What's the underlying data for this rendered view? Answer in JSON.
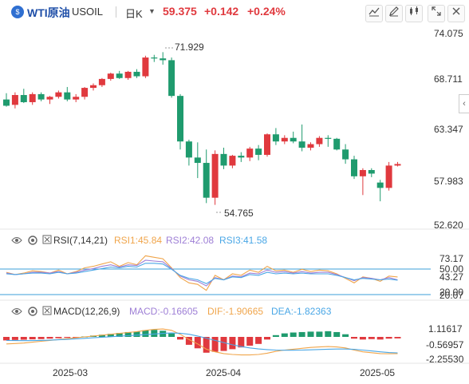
{
  "header": {
    "symbol_badge": "$",
    "name": "WTI原油",
    "code": "USOIL",
    "period": "日K",
    "period_caret": "▼",
    "price": "59.375",
    "change": "+0.142",
    "change_pct": "+0.24%",
    "icons": [
      "trend-icon",
      "pencil-icon",
      "candles-icon",
      "expand-icon",
      "close-icon"
    ]
  },
  "price_axis": [
    "74.075",
    "68.711",
    "63.347",
    "57.983",
    "52.620"
  ],
  "annotations": {
    "high": "71.929",
    "low": "54.765"
  },
  "rsi": {
    "title": "RSI(7,14,21)",
    "rsi1": "RSI1:45.84",
    "rsi2": "RSI2:42.08",
    "rsi3": "RSI3:41.58",
    "axis": [
      "73.17",
      "50.00",
      "43.27",
      "20.00",
      "20.07"
    ],
    "colors": {
      "rsi1": "#f0a54b",
      "rsi2": "#9e7fd6",
      "rsi3": "#4aa7e6"
    }
  },
  "macd": {
    "title": "MACD(12,26,9)",
    "macd": "MACD:-0.16605",
    "dif": "DIF:-1.90665",
    "dea": "DEA:-1.82363",
    "axis": [
      "1.11617",
      "-0.56957",
      "-2.25530"
    ],
    "colors": {
      "macd": "#9e7fd6",
      "dif": "#f0a54b",
      "dea": "#4aa7e6"
    }
  },
  "time_axis": [
    "2025-03",
    "2025-04",
    "2025-05"
  ],
  "colors": {
    "up": "#e0393e",
    "down": "#1f9b6e",
    "accent": "#1f4fa8"
  },
  "chart_data": {
    "type": "candlestick",
    "ylim": [
      52.62,
      74.075
    ],
    "ohlc": [
      [
        66.6,
        67.3,
        65.8,
        65.9
      ],
      [
        66.0,
        67.4,
        65.6,
        67.1
      ],
      [
        67.1,
        67.8,
        66.2,
        66.3
      ],
      [
        66.3,
        67.4,
        66.0,
        67.2
      ],
      [
        67.2,
        67.4,
        66.4,
        66.6
      ],
      [
        66.6,
        67.0,
        66.1,
        66.9
      ],
      [
        66.9,
        67.6,
        66.7,
        67.4
      ],
      [
        67.4,
        68.0,
        66.4,
        66.6
      ],
      [
        66.6,
        67.2,
        66.3,
        66.9
      ],
      [
        66.9,
        68.0,
        66.6,
        67.9
      ],
      [
        67.9,
        68.4,
        67.6,
        68.2
      ],
      [
        68.2,
        69.0,
        68.0,
        68.9
      ],
      [
        68.9,
        69.6,
        68.7,
        69.5
      ],
      [
        69.5,
        69.8,
        68.9,
        69.0
      ],
      [
        69.0,
        69.8,
        68.8,
        69.7
      ],
      [
        69.7,
        70.0,
        69.0,
        69.2
      ],
      [
        69.2,
        71.5,
        69.0,
        71.3
      ],
      [
        71.3,
        71.6,
        70.8,
        71.2
      ],
      [
        71.2,
        71.9,
        70.5,
        71.0
      ],
      [
        71.0,
        71.3,
        66.8,
        67.0
      ],
      [
        67.0,
        67.2,
        61.0,
        61.9
      ],
      [
        61.9,
        62.1,
        59.2,
        60.1
      ],
      [
        60.1,
        61.8,
        57.8,
        59.5
      ],
      [
        59.5,
        61.0,
        55.0,
        55.6
      ],
      [
        55.6,
        60.9,
        54.8,
        60.5
      ],
      [
        60.5,
        61.2,
        58.8,
        59.2
      ],
      [
        59.2,
        60.4,
        58.9,
        60.3
      ],
      [
        60.3,
        60.7,
        59.6,
        60.1
      ],
      [
        60.1,
        61.3,
        59.7,
        61.1
      ],
      [
        61.1,
        61.5,
        59.8,
        60.4
      ],
      [
        60.4,
        62.8,
        60.2,
        62.7
      ],
      [
        62.7,
        63.4,
        61.5,
        61.9
      ],
      [
        61.9,
        62.6,
        61.6,
        62.3
      ],
      [
        62.3,
        63.0,
        61.7,
        61.9
      ],
      [
        61.9,
        63.8,
        60.8,
        61.2
      ],
      [
        61.2,
        61.8,
        60.9,
        61.6
      ],
      [
        61.6,
        62.5,
        61.3,
        62.3
      ],
      [
        62.3,
        62.6,
        61.3,
        62.2
      ],
      [
        62.2,
        62.3,
        60.9,
        61.0
      ],
      [
        61.0,
        61.6,
        59.4,
        59.9
      ],
      [
        59.9,
        60.3,
        57.7,
        58.0
      ],
      [
        58.0,
        58.9,
        55.9,
        58.7
      ],
      [
        58.7,
        58.9,
        57.9,
        58.3
      ],
      [
        57.3,
        57.6,
        55.2,
        56.7
      ],
      [
        56.7,
        59.6,
        56.4,
        59.2
      ],
      [
        59.2,
        59.6,
        59.1,
        59.375
      ]
    ],
    "rsi_ylim": [
      15,
      85
    ],
    "rsi1": [
      52,
      49,
      51,
      54,
      53,
      51,
      55,
      50,
      53,
      58,
      60,
      63,
      66,
      60,
      65,
      62,
      74,
      72,
      70,
      58,
      45,
      38,
      36,
      28,
      48,
      42,
      50,
      48,
      55,
      52,
      60,
      54,
      55,
      52,
      56,
      53,
      55,
      54,
      50,
      44,
      38,
      46,
      44,
      40,
      47,
      45.84
    ],
    "rsi2": [
      51,
      49,
      50,
      52,
      52,
      51,
      53,
      50,
      52,
      55,
      57,
      60,
      62,
      59,
      62,
      61,
      68,
      67,
      66,
      57,
      47,
      42,
      40,
      34,
      45,
      42,
      47,
      46,
      51,
      50,
      55,
      52,
      53,
      51,
      53,
      51,
      52,
      52,
      49,
      45,
      41,
      45,
      44,
      42,
      45,
      42.08
    ],
    "rsi3": [
      50,
      49,
      50,
      51,
      51,
      50,
      52,
      50,
      51,
      53,
      55,
      57,
      59,
      58,
      60,
      59,
      64,
      64,
      63,
      56,
      48,
      44,
      42,
      37,
      44,
      42,
      46,
      45,
      49,
      48,
      52,
      50,
      51,
      50,
      51,
      50,
      50,
      50,
      48,
      45,
      42,
      44,
      43,
      42,
      43,
      41.58
    ],
    "macd_ylim": [
      -3.0,
      2.0
    ],
    "macd_hist": [
      -0.4,
      -0.35,
      -0.32,
      -0.28,
      -0.25,
      -0.2,
      -0.15,
      -0.1,
      -0.05,
      0.05,
      0.15,
      0.25,
      0.35,
      0.45,
      0.55,
      0.6,
      0.75,
      0.8,
      0.7,
      0.4,
      -0.3,
      -0.9,
      -1.3,
      -1.8,
      -1.7,
      -1.6,
      -1.4,
      -1.2,
      -1.0,
      -0.8,
      -0.3,
      0.2,
      0.4,
      0.5,
      0.55,
      0.6,
      0.6,
      0.65,
      0.55,
      0.3,
      -0.2,
      -0.3,
      -0.25,
      -0.3,
      -0.2,
      -0.17
    ],
    "dif": [
      -0.8,
      -0.75,
      -0.7,
      -0.6,
      -0.5,
      -0.4,
      -0.3,
      -0.2,
      -0.1,
      0.0,
      0.1,
      0.2,
      0.3,
      0.4,
      0.5,
      0.6,
      0.75,
      0.85,
      0.9,
      0.75,
      0.3,
      -0.3,
      -0.8,
      -1.4,
      -1.7,
      -1.9,
      -2.0,
      -2.05,
      -2.05,
      -2.0,
      -1.85,
      -1.65,
      -1.5,
      -1.4,
      -1.3,
      -1.2,
      -1.15,
      -1.1,
      -1.15,
      -1.25,
      -1.5,
      -1.7,
      -1.8,
      -1.9,
      -1.92,
      -1.91
    ],
    "dea": [
      -0.4,
      -0.42,
      -0.43,
      -0.42,
      -0.4,
      -0.37,
      -0.33,
      -0.28,
      -0.22,
      -0.16,
      -0.1,
      -0.04,
      0.02,
      0.08,
      0.14,
      0.2,
      0.26,
      0.33,
      0.4,
      0.45,
      0.42,
      0.3,
      0.1,
      -0.15,
      -0.4,
      -0.65,
      -0.9,
      -1.1,
      -1.25,
      -1.37,
      -1.45,
      -1.5,
      -1.52,
      -1.52,
      -1.5,
      -1.47,
      -1.44,
      -1.4,
      -1.38,
      -1.38,
      -1.42,
      -1.5,
      -1.6,
      -1.7,
      -1.78,
      -1.82
    ]
  }
}
